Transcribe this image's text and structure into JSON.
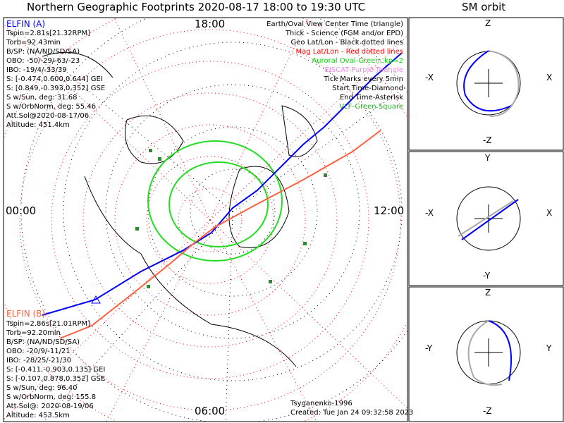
{
  "title": "Northern Geographic Footprints 2020-08-17 18:00 to 19:30 UTC",
  "orbit_title": "SM orbit",
  "time_labels": {
    "top": "18:00",
    "bottom": "06:00",
    "left": "00:00",
    "right": "12:00"
  },
  "elfin_a": {
    "name": "ELFIN (A)",
    "lines": [
      "Tspin=2.81s[21.32RPM]",
      "Torb=92.43min",
      "B/SP: (NA/ND/SD/SA)",
      "OBO: -50/-29/-63/-23",
      "IBO: -19/4/-33/39",
      "S: [-0.474,0.600,0.644] GEI",
      "S: [0.849,-0.393,0.352] GSE",
      "S w/Sun, deg: 31.68",
      "S w/OrbNorm, deg: 55.46",
      "Att.Sol@2020-08-17/06",
      "Altitude: 451.4km"
    ],
    "color": "#0000ff"
  },
  "elfin_b": {
    "name": "ELFIN (B)",
    "lines": [
      "Tspin=2.86s[21.01RPM]",
      "Torb=92.20min",
      "B/SP: (NA/ND/SD/SA)",
      "OBO: -20/9/-11/21",
      "IBO: -28/25/-21/30",
      "S: [-0.411,-0.903,0.135] GEI",
      "S: [-0.107,0.878,0.352] GSE",
      "S w/Sun, deg: 96.40",
      "S w/OrbNorm, deg: 155.8",
      "Att.Sol@: 2020-08-19/06",
      "Altitude: 453.5km"
    ],
    "color": "#ff6040"
  },
  "legend": [
    {
      "text": "Earth/Oval View Center Time (triangle)",
      "color": "#000000"
    },
    {
      "text": "Thick - Science (FGM and/or EPD)",
      "color": "#000000"
    },
    {
      "text": "Geo Lat/Lon - Black dotted lines",
      "color": "#000000"
    },
    {
      "text": "Mag Lat/Lon - Red dotted lines",
      "color": "#ff0000"
    },
    {
      "text": "Auroral Oval-Green, kp=2",
      "color": "#00dd00"
    },
    {
      "text": "EISCAT-Purple Triangle",
      "color": "#ee88ee"
    },
    {
      "text": "Tick Marks every 5min",
      "color": "#000000"
    },
    {
      "text": "Start Time-Diamond",
      "color": "#000000"
    },
    {
      "text": "End Time-Asterisk",
      "color": "#000000"
    },
    {
      "text": "VLF-Green Square",
      "color": "#33aa33"
    }
  ],
  "footer": {
    "model": "Tsyganenko-1996",
    "created": "Created: Tue Jan 24 09:32:58 2023"
  },
  "orbit_panels": [
    {
      "top": "Z",
      "bottom": "-Z",
      "left": "-X",
      "right": "X"
    },
    {
      "top": "Y",
      "bottom": "-Y",
      "left": "-X",
      "right": "X"
    },
    {
      "top": "Z",
      "bottom": "-Z",
      "left": "-Y",
      "right": "Y"
    }
  ]
}
